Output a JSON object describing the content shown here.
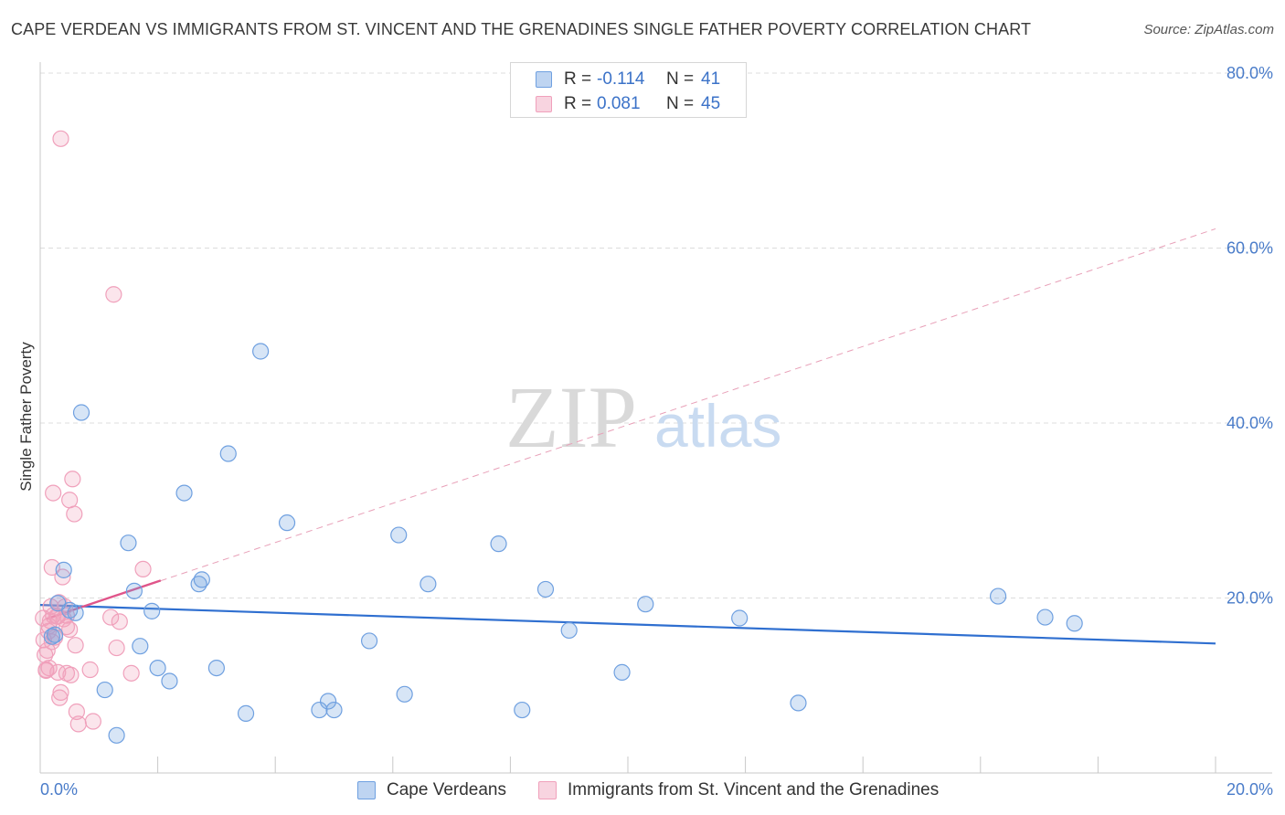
{
  "title": "CAPE VERDEAN VS IMMIGRANTS FROM ST. VINCENT AND THE GRENADINES SINGLE FATHER POVERTY CORRELATION CHART",
  "source": "Source: ZipAtlas.com",
  "watermark": {
    "zip": "ZIP",
    "atlas": "atlas"
  },
  "legend_stats": [
    {
      "r_label": "R =",
      "r_value": "-0.114",
      "n_label": "N =",
      "n_value": "41",
      "color": "#6fa0e0"
    },
    {
      "r_label": "R =",
      "r_value": "0.081",
      "n_label": "N =",
      "n_value": "45",
      "color": "#f0a0bb"
    }
  ],
  "bottom_legend": [
    {
      "label": "Cape Verdeans",
      "color": "#6fa0e0"
    },
    {
      "label": "Immigrants from St. Vincent and the Grenadines",
      "color": "#f0a0bb"
    }
  ],
  "chart_data": {
    "type": "scatter",
    "title": "CAPE VERDEAN VS IMMIGRANTS FROM ST. VINCENT AND THE GRENADINES SINGLE FATHER POVERTY CORRELATION CHART",
    "xlabel": "",
    "ylabel": "Single Father Poverty",
    "xlim": [
      0,
      20
    ],
    "ylim": [
      0,
      80
    ],
    "x_tick_labels": [
      "0.0%",
      "20.0%"
    ],
    "y_ticks": [
      20,
      40,
      60,
      80
    ],
    "y_tick_labels": [
      "20.0%",
      "40.0%",
      "60.0%",
      "80.0%"
    ],
    "grid": true,
    "series": [
      {
        "name": "Cape Verdeans",
        "color": "#6fa0e0",
        "line_color": "#2f6fd0",
        "points": [
          [
            0.2,
            15.6
          ],
          [
            0.3,
            19.4
          ],
          [
            0.4,
            23.2
          ],
          [
            0.5,
            18.6
          ],
          [
            0.6,
            18.3
          ],
          [
            0.7,
            41.2
          ],
          [
            1.1,
            9.5
          ],
          [
            1.3,
            4.3
          ],
          [
            1.5,
            26.3
          ],
          [
            1.6,
            20.8
          ],
          [
            1.7,
            14.5
          ],
          [
            1.9,
            18.5
          ],
          [
            2.0,
            12.0
          ],
          [
            2.2,
            10.5
          ],
          [
            2.45,
            32.0
          ],
          [
            2.7,
            21.6
          ],
          [
            2.75,
            22.1
          ],
          [
            3.0,
            12.0
          ],
          [
            3.2,
            36.5
          ],
          [
            3.5,
            6.8
          ],
          [
            3.75,
            48.2
          ],
          [
            4.2,
            28.6
          ],
          [
            4.75,
            7.2
          ],
          [
            4.9,
            8.2
          ],
          [
            5.0,
            7.2
          ],
          [
            5.6,
            15.1
          ],
          [
            6.1,
            27.2
          ],
          [
            6.2,
            9.0
          ],
          [
            6.6,
            21.6
          ],
          [
            7.8,
            26.2
          ],
          [
            8.2,
            7.2
          ],
          [
            8.6,
            21.0
          ],
          [
            9.0,
            16.3
          ],
          [
            9.9,
            11.5
          ],
          [
            10.3,
            19.3
          ],
          [
            11.9,
            17.7
          ],
          [
            12.9,
            8.0
          ],
          [
            16.3,
            20.2
          ],
          [
            17.1,
            17.8
          ],
          [
            17.6,
            17.1
          ],
          [
            0.25,
            15.8
          ]
        ],
        "trend": {
          "x": [
            0,
            20
          ],
          "y": [
            19.2,
            14.8
          ],
          "style": "solid"
        }
      },
      {
        "name": "Immigrants from St. Vincent and the Grenadines",
        "color": "#f0a0bb",
        "line_color": "#e0558a",
        "points": [
          [
            0.05,
            17.7
          ],
          [
            0.06,
            15.2
          ],
          [
            0.08,
            13.5
          ],
          [
            0.1,
            11.8
          ],
          [
            0.12,
            14.0
          ],
          [
            0.14,
            16.2
          ],
          [
            0.15,
            12.0
          ],
          [
            0.17,
            17.4
          ],
          [
            0.18,
            19.0
          ],
          [
            0.2,
            23.5
          ],
          [
            0.22,
            18.0
          ],
          [
            0.22,
            32.0
          ],
          [
            0.25,
            15.5
          ],
          [
            0.28,
            17.9
          ],
          [
            0.3,
            11.5
          ],
          [
            0.32,
            19.5
          ],
          [
            0.33,
            8.6
          ],
          [
            0.35,
            9.2
          ],
          [
            0.35,
            72.5
          ],
          [
            0.38,
            22.4
          ],
          [
            0.4,
            17.6
          ],
          [
            0.42,
            19.0
          ],
          [
            0.45,
            16.7
          ],
          [
            0.45,
            18.0
          ],
          [
            0.5,
            31.2
          ],
          [
            0.5,
            16.4
          ],
          [
            0.52,
            11.2
          ],
          [
            0.55,
            33.6
          ],
          [
            0.58,
            29.6
          ],
          [
            0.6,
            14.6
          ],
          [
            0.62,
            7.0
          ],
          [
            0.65,
            5.6
          ],
          [
            0.85,
            11.8
          ],
          [
            0.9,
            5.9
          ],
          [
            1.2,
            17.8
          ],
          [
            1.25,
            54.7
          ],
          [
            1.3,
            14.3
          ],
          [
            1.35,
            17.3
          ],
          [
            1.55,
            11.4
          ],
          [
            1.75,
            23.3
          ],
          [
            0.1,
            11.7
          ],
          [
            0.15,
            16.8
          ],
          [
            0.2,
            15.0
          ],
          [
            0.3,
            17.9
          ],
          [
            0.45,
            11.4
          ]
        ],
        "trend_solid": {
          "x": [
            0.1,
            2.05
          ],
          "y": [
            17.6,
            22.0
          ]
        },
        "trend_dashed": {
          "x": [
            0.1,
            20
          ],
          "y": [
            17.6,
            62.2
          ]
        }
      }
    ]
  }
}
